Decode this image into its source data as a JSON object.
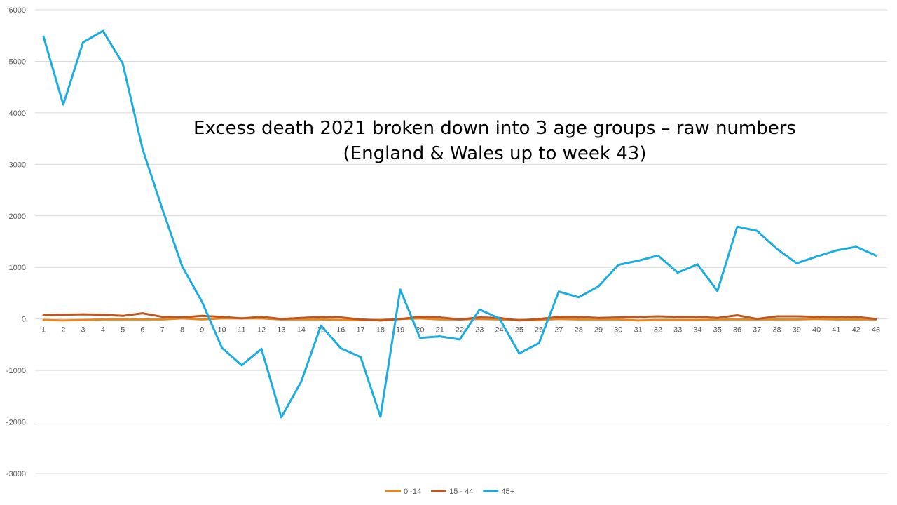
{
  "chart_data": {
    "type": "line",
    "title": [
      "Excess death 2021 broken down into 3 age groups – raw numbers",
      "(England & Wales up to week 43)"
    ],
    "xlabel": "",
    "ylabel": "",
    "ylim": [
      -3000,
      6000
    ],
    "yticks": [
      6000,
      5000,
      4000,
      3000,
      2000,
      1000,
      0,
      -1000,
      -2000,
      -3000
    ],
    "grid": true,
    "legend_position": "bottom",
    "categories": [
      "1",
      "2",
      "3",
      "4",
      "5",
      "6",
      "7",
      "8",
      "9",
      "10",
      "11",
      "12",
      "13",
      "14",
      "15",
      "16",
      "17",
      "18",
      "19",
      "20",
      "21",
      "22",
      "23",
      "24",
      "25",
      "26",
      "27",
      "28",
      "29",
      "30",
      "31",
      "32",
      "33",
      "34",
      "35",
      "36",
      "37",
      "38",
      "39",
      "40",
      "41",
      "42",
      "43"
    ],
    "series": [
      {
        "name": "0 -14",
        "color": "#E8871E",
        "values": [
          -20,
          -30,
          -20,
          -10,
          -10,
          -10,
          -10,
          10,
          -10,
          10,
          10,
          10,
          -10,
          -10,
          -10,
          -20,
          -20,
          -20,
          0,
          10,
          -10,
          -10,
          0,
          -10,
          -20,
          -20,
          0,
          -10,
          -10,
          -10,
          -30,
          -20,
          -20,
          -20,
          -10,
          -10,
          -10,
          -10,
          -10,
          0,
          -10,
          -10,
          -10
        ]
      },
      {
        "name": "15 - 44",
        "color": "#C0561F",
        "values": [
          70,
          80,
          90,
          80,
          60,
          110,
          40,
          30,
          60,
          40,
          10,
          40,
          0,
          20,
          40,
          30,
          -10,
          -30,
          0,
          40,
          30,
          -10,
          30,
          20,
          -30,
          0,
          40,
          40,
          20,
          30,
          40,
          50,
          40,
          40,
          20,
          70,
          0,
          50,
          50,
          40,
          30,
          40,
          0
        ]
      },
      {
        "name": "45+",
        "color": "#1BACE0",
        "values": [
          5480,
          4160,
          5370,
          5590,
          4960,
          3300,
          2130,
          1020,
          330,
          -560,
          -900,
          -580,
          -1910,
          -1220,
          -130,
          -570,
          -740,
          -1900,
          570,
          -370,
          -340,
          -400,
          180,
          10,
          -670,
          -470,
          530,
          420,
          630,
          1050,
          1130,
          1230,
          900,
          1060,
          540,
          1790,
          1710,
          1360,
          1080,
          1210,
          1330,
          1400,
          1230
        ]
      }
    ]
  }
}
